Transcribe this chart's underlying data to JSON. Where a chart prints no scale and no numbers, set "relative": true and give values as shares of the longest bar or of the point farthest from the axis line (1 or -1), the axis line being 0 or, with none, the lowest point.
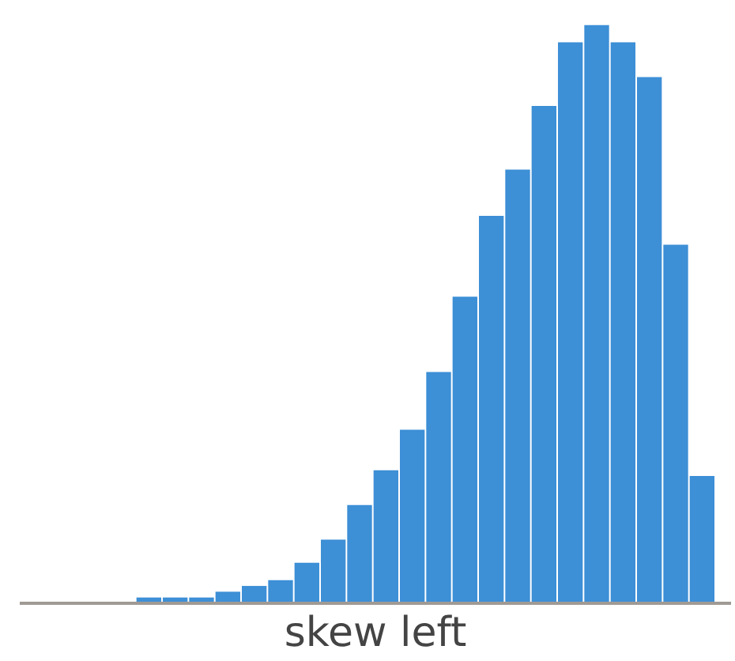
{
  "chart_data": {
    "type": "bar",
    "relative": true,
    "xlabel": "skew left",
    "color": "#3d8fd6",
    "categories": [
      null,
      null,
      null,
      null,
      null,
      null,
      null,
      null,
      null,
      null,
      null,
      null,
      null,
      null,
      null,
      null,
      null,
      null,
      null,
      null,
      null,
      null
    ],
    "values": [
      0.01,
      0.01,
      0.01,
      0.02,
      0.03,
      0.04,
      0.07,
      0.11,
      0.17,
      0.23,
      0.3,
      0.4,
      0.53,
      0.67,
      0.75,
      0.86,
      0.97,
      1,
      0.97,
      0.91,
      0.62,
      0.22
    ]
  }
}
